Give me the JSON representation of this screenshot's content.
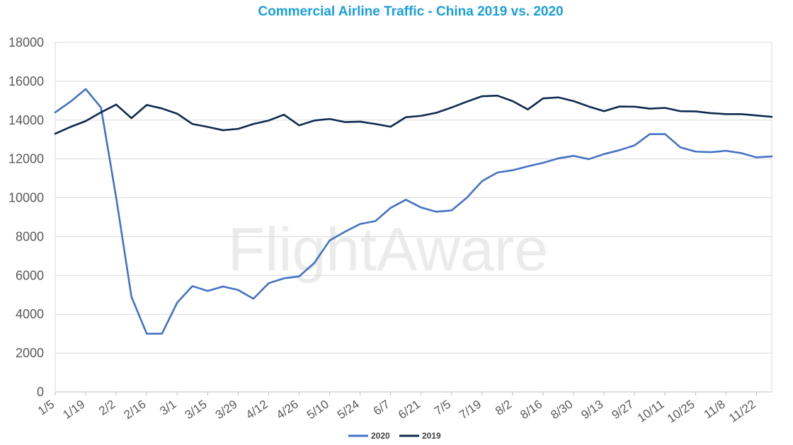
{
  "chart_data": {
    "type": "line",
    "title": "Commercial Airline Traffic - China 2019 vs. 2020",
    "watermark": "FlightAware",
    "xlabel": "",
    "ylabel": "",
    "ylim": [
      0,
      18000
    ],
    "yticks": [
      0,
      2000,
      4000,
      6000,
      8000,
      10000,
      12000,
      14000,
      16000,
      18000
    ],
    "x_tick_labels": [
      "1/5",
      "1/19",
      "2/2",
      "2/16",
      "3/1",
      "3/15",
      "3/29",
      "4/12",
      "4/26",
      "5/10",
      "5/24",
      "6/7",
      "6/21",
      "7/5",
      "7/19",
      "8/2",
      "8/16",
      "8/30",
      "9/13",
      "9/27",
      "10/11",
      "10/25",
      "11/8",
      "11/22"
    ],
    "grid": true,
    "legend_position": "bottom",
    "colors": {
      "title": "#1a9fdc",
      "s2020": "#4472c4",
      "s2019": "#0e2a4f",
      "grid": "#d9d9d9",
      "axis": "#bfbfbf"
    },
    "series": [
      {
        "name": "2020",
        "color": "#4472c4",
        "values": [
          14400,
          14950,
          15600,
          14650,
          10000,
          4900,
          3000,
          3000,
          4600,
          5450,
          5200,
          5430,
          5250,
          4800,
          5600,
          5850,
          5950,
          6650,
          7800,
          8250,
          8650,
          8800,
          9480,
          9900,
          9500,
          9280,
          9350,
          10000,
          10860,
          11300,
          11420,
          11620,
          11800,
          12030,
          12160,
          11990,
          12250,
          12450,
          12700,
          13280,
          13280,
          12600,
          12380,
          12350,
          12420,
          12300,
          12080,
          12130
        ]
      },
      {
        "name": "2019",
        "color": "#0e2a4f",
        "values": [
          13300,
          13650,
          13950,
          14400,
          14800,
          14100,
          14780,
          14600,
          14330,
          13800,
          13650,
          13480,
          13550,
          13800,
          13980,
          14280,
          13730,
          13980,
          14060,
          13900,
          13920,
          13800,
          13660,
          14150,
          14220,
          14380,
          14650,
          14950,
          15230,
          15260,
          14980,
          14550,
          15120,
          15170,
          14980,
          14700,
          14460,
          14700,
          14690,
          14590,
          14630,
          14460,
          14450,
          14360,
          14310,
          14310,
          14240,
          14170
        ]
      }
    ]
  }
}
